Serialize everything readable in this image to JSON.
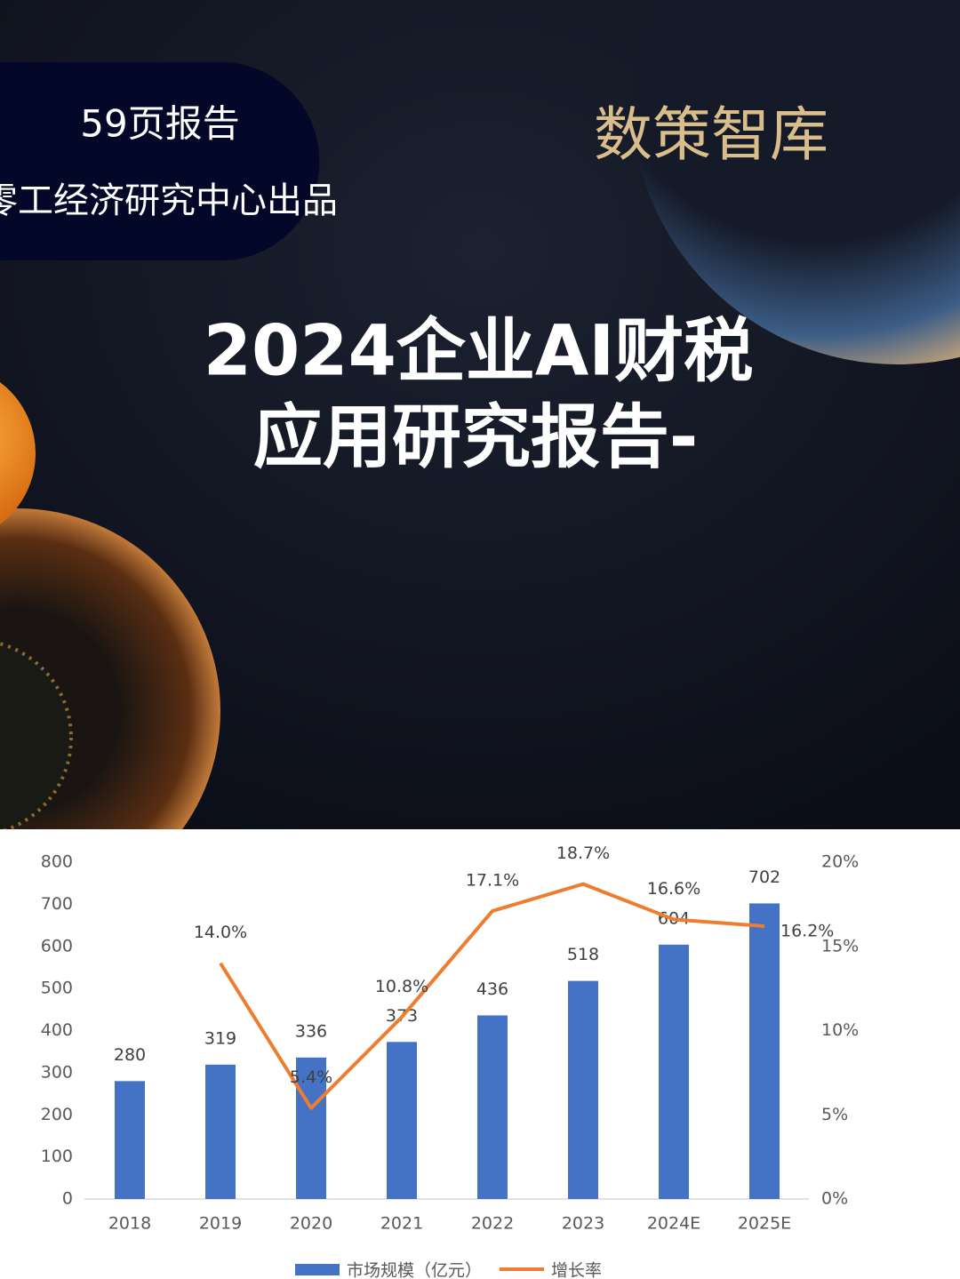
{
  "cover": {
    "badge_lines": [
      "59页报告",
      "零工经济研究中心出品"
    ],
    "brand": "数策智库",
    "title_lines": [
      "2024企业AI财税",
      "应用研究报告-"
    ]
  },
  "chart_data": {
    "type": "bar-line",
    "categories": [
      "2018",
      "2019",
      "2020",
      "2021",
      "2022",
      "2023",
      "2024E",
      "2025E"
    ],
    "series": [
      {
        "name": "市场规模（亿元）",
        "color": "#4472c4",
        "type": "bar",
        "values": [
          280,
          319,
          336,
          373,
          436,
          518,
          604,
          702
        ]
      },
      {
        "name": "增长率",
        "color": "#ed7d31",
        "type": "line",
        "axis": "y2",
        "values": [
          null,
          14.0,
          5.4,
          10.8,
          17.1,
          18.7,
          16.6,
          16.2
        ],
        "value_labels": [
          null,
          "14.0%",
          "5.4%",
          "10.8%",
          "17.1%",
          "18.7%",
          "16.6%",
          "16.2%"
        ]
      }
    ],
    "ylim": [
      0,
      800
    ],
    "yticks": [
      0,
      100,
      200,
      300,
      400,
      500,
      600,
      700,
      800
    ],
    "y2lim": [
      0,
      20
    ],
    "y2ticks": [
      {
        "value": 0,
        "label": "0%"
      },
      {
        "value": 5,
        "label": "5%"
      },
      {
        "value": 10,
        "label": "10%"
      },
      {
        "value": 15,
        "label": "15%"
      },
      {
        "value": 20,
        "label": "20%"
      }
    ],
    "grid": false,
    "legend": "bottom"
  }
}
